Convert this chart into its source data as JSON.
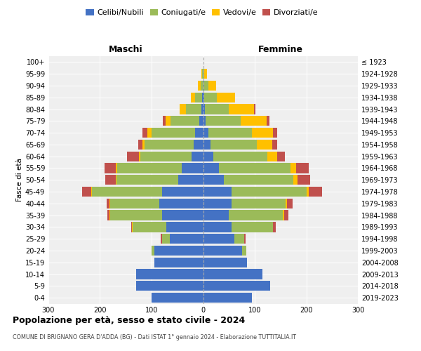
{
  "age_groups": [
    "0-4",
    "5-9",
    "10-14",
    "15-19",
    "20-24",
    "25-29",
    "30-34",
    "35-39",
    "40-44",
    "45-49",
    "50-54",
    "55-59",
    "60-64",
    "65-69",
    "70-74",
    "75-79",
    "80-84",
    "85-89",
    "90-94",
    "95-99",
    "100+"
  ],
  "birth_years": [
    "2019-2023",
    "2014-2018",
    "2009-2013",
    "2004-2008",
    "1999-2003",
    "1994-1998",
    "1989-1993",
    "1984-1988",
    "1979-1983",
    "1974-1978",
    "1969-1973",
    "1964-1968",
    "1959-1963",
    "1954-1958",
    "1949-1953",
    "1944-1948",
    "1939-1943",
    "1934-1938",
    "1929-1933",
    "1924-1928",
    "≤ 1923"
  ],
  "colors": {
    "celibi": "#4472C4",
    "coniugati": "#9BBB59",
    "vedovi": "#FFC000",
    "divorziati": "#C0504D"
  },
  "males": {
    "celibi": [
      100,
      130,
      130,
      95,
      95,
      65,
      72,
      80,
      85,
      80,
      48,
      42,
      22,
      18,
      15,
      8,
      4,
      2,
      0,
      0,
      0
    ],
    "coniugati": [
      0,
      0,
      0,
      0,
      5,
      15,
      65,
      100,
      95,
      135,
      120,
      125,
      100,
      95,
      85,
      55,
      30,
      14,
      5,
      2,
      0
    ],
    "vedovi": [
      0,
      0,
      0,
      0,
      0,
      0,
      1,
      1,
      2,
      2,
      2,
      2,
      3,
      5,
      8,
      10,
      12,
      8,
      5,
      1,
      0
    ],
    "divorziati": [
      0,
      0,
      0,
      0,
      0,
      2,
      2,
      5,
      5,
      18,
      20,
      22,
      22,
      8,
      10,
      5,
      0,
      0,
      0,
      0,
      0
    ]
  },
  "females": {
    "nubili": [
      95,
      130,
      115,
      85,
      75,
      60,
      55,
      50,
      55,
      55,
      40,
      30,
      20,
      14,
      10,
      5,
      4,
      2,
      2,
      0,
      0
    ],
    "coniugate": [
      0,
      0,
      0,
      0,
      8,
      20,
      80,
      105,
      105,
      145,
      135,
      140,
      105,
      90,
      85,
      68,
      45,
      25,
      8,
      2,
      0
    ],
    "vedove": [
      0,
      0,
      0,
      0,
      0,
      0,
      1,
      2,
      2,
      5,
      8,
      10,
      18,
      30,
      40,
      50,
      50,
      35,
      15,
      5,
      0
    ],
    "divorziate": [
      0,
      0,
      0,
      0,
      0,
      2,
      5,
      8,
      12,
      25,
      25,
      25,
      15,
      10,
      8,
      5,
      2,
      0,
      0,
      0,
      0
    ]
  },
  "xlim": 300,
  "title": "Popolazione per età, sesso e stato civile - 2024",
  "subtitle": "COMUNE DI BRIGNANO GERA D'ADDA (BG) - Dati ISTAT 1° gennaio 2024 - Elaborazione TUTTITALIA.IT",
  "ylabel_left": "Fasce di età",
  "xlabel_left": "Maschi",
  "xlabel_right": "Femmine",
  "bg_color": "#ffffff",
  "plot_bg_color": "#efefef"
}
